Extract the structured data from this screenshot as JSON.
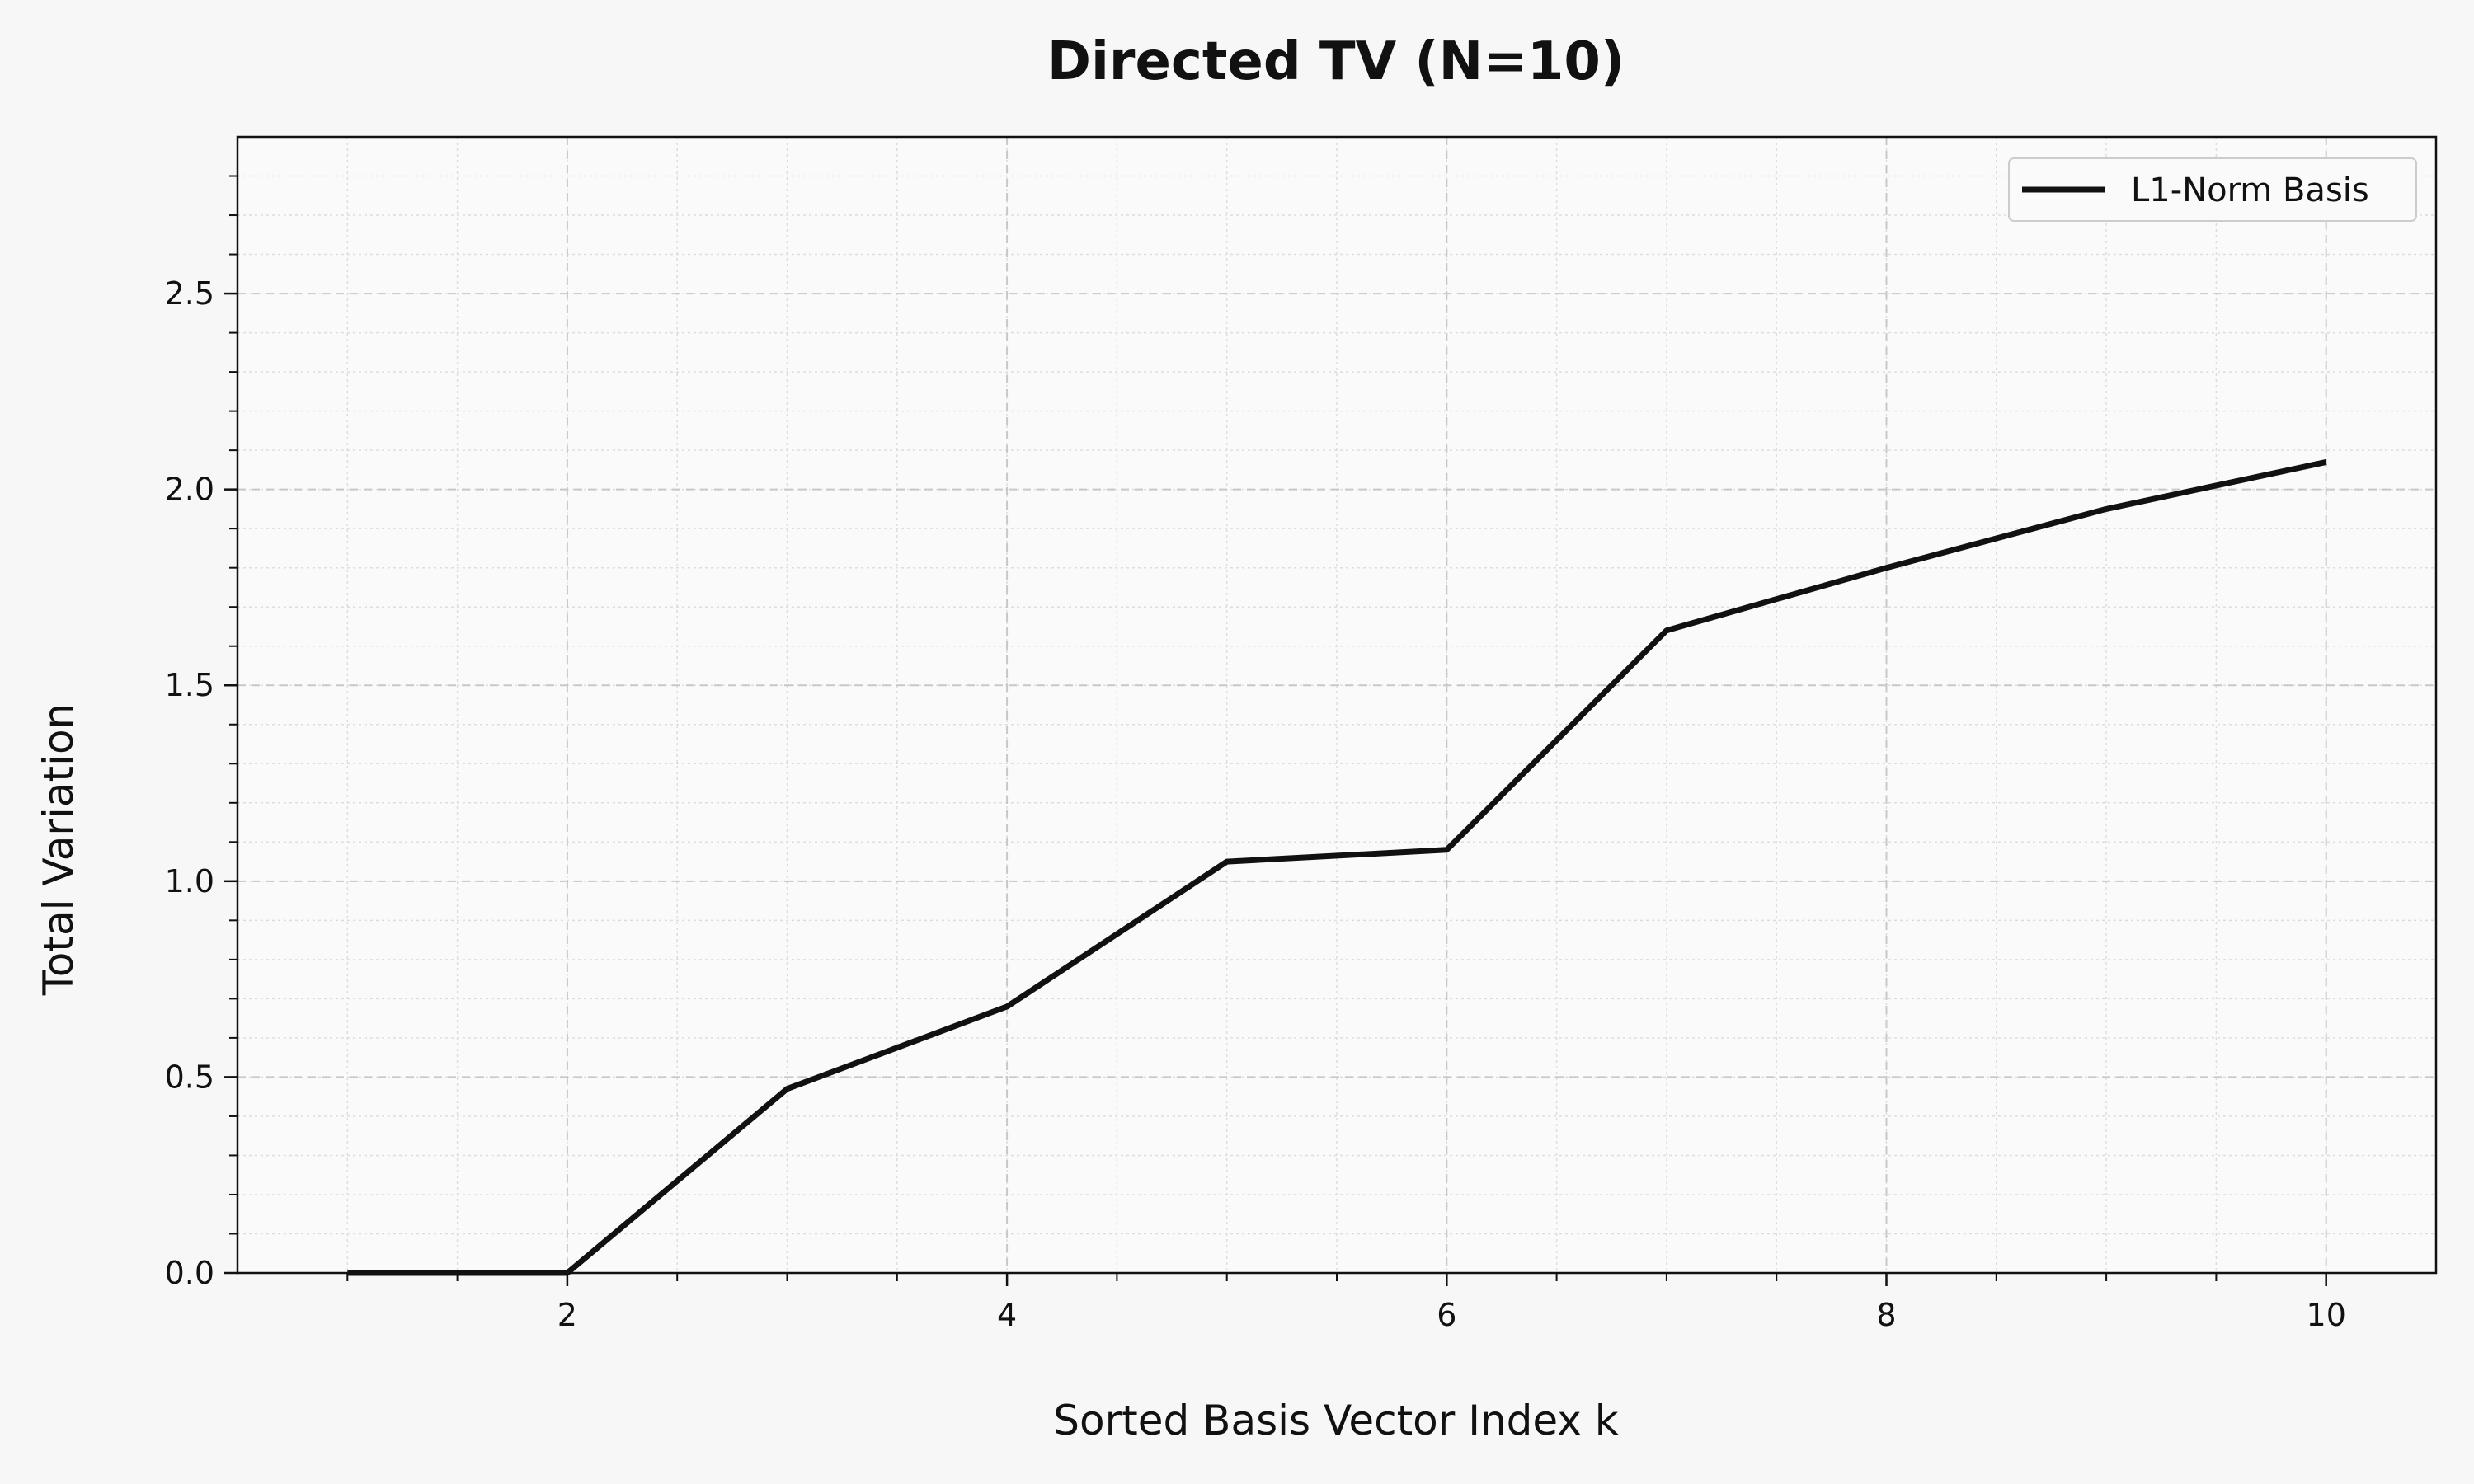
{
  "chart_data": {
    "type": "line",
    "title": "Directed TV (N=10)",
    "xlabel": "Sorted Basis Vector Index k",
    "ylabel": "Total Variation",
    "xlim": [
      0.5,
      10.5
    ],
    "ylim": [
      0,
      2.9
    ],
    "x_ticks": [
      2,
      4,
      6,
      8,
      10
    ],
    "y_ticks": [
      0.0,
      0.5,
      1.0,
      1.5,
      2.0,
      2.5
    ],
    "x_tick_labels": [
      "2",
      "4",
      "6",
      "8",
      "10"
    ],
    "y_tick_labels": [
      "0.0",
      "0.5",
      "1.0",
      "1.5",
      "2.0",
      "2.5"
    ],
    "grid": true,
    "legend_position": "top-right",
    "series": [
      {
        "name": "L1-Norm Basis",
        "color": "#111111",
        "x": [
          1,
          2,
          3,
          4,
          5,
          6,
          7,
          8,
          9,
          10
        ],
        "values": [
          0.0,
          0.0,
          0.47,
          0.68,
          1.05,
          1.08,
          1.64,
          1.8,
          1.95,
          2.07
        ]
      }
    ]
  }
}
